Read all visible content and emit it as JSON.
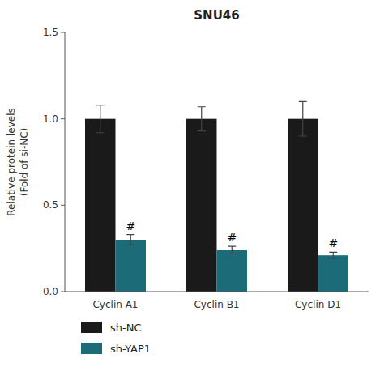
{
  "chart_data": {
    "type": "bar",
    "title": "SNU46",
    "ylabel": "Relative protein levels\n(Fold of si-NC)",
    "categories": [
      "Cyclin A1",
      "Cyclin B1",
      "Cyclin D1"
    ],
    "series": [
      {
        "name": "sh-NC",
        "color": "#1a1a1a",
        "values": [
          1.0,
          1.0,
          1.0
        ],
        "errors": [
          0.08,
          0.07,
          0.1
        ]
      },
      {
        "name": "sh-YAP1",
        "color": "#1c6b78",
        "values": [
          0.3,
          0.24,
          0.21
        ],
        "errors": [
          0.03,
          0.022,
          0.018
        ],
        "annotations": [
          "#",
          "#",
          "#"
        ]
      }
    ],
    "ylim": [
      0.0,
      1.5
    ],
    "yticks": [
      {
        "value": 0.0,
        "label": "0.0"
      },
      0.5,
      {
        "value": 1.0,
        "label": "1.0"
      },
      1.5
    ],
    "grid": false,
    "legend": "bottom"
  }
}
